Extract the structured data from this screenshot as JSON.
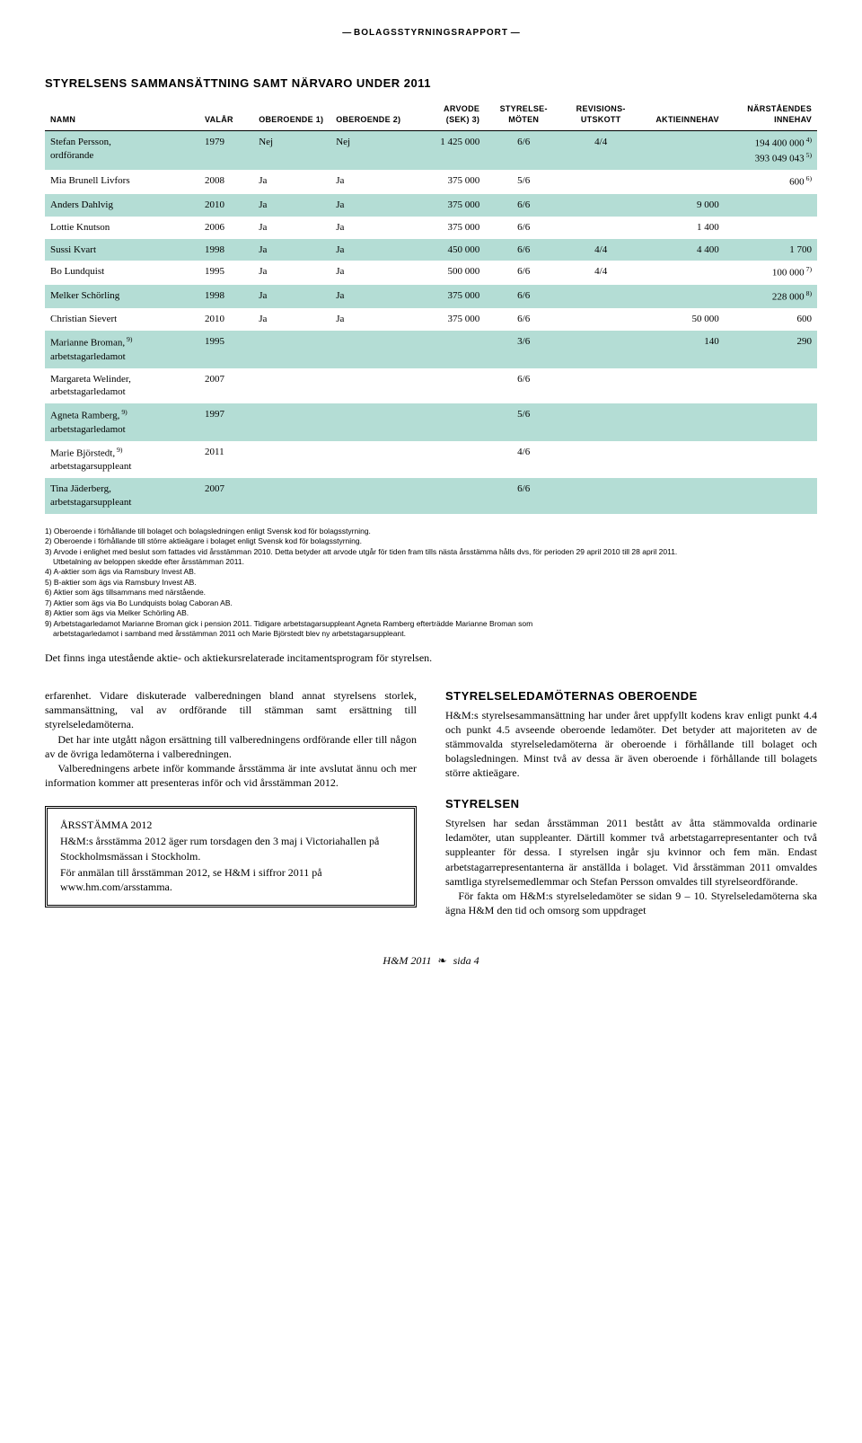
{
  "colors": {
    "rowAlt": "#b4ddd5",
    "text": "#000000",
    "bg": "#ffffff"
  },
  "eyebrow": "BOLAGSSTYRNINGSRAPPORT",
  "tableTitle": "STYRELSENS SAMMANSÄTTNING SAMT NÄRVARO UNDER 2011",
  "headers": {
    "name": "NAMN",
    "year": "VALÅR",
    "ind1": "OBEROENDE 1)",
    "ind2": "OBEROENDE 2)",
    "fee": "ARVODE (SEK) 3)",
    "meetings": "STYRELSE-MÖTEN",
    "audit": "REVISIONS-UTSKOTT",
    "shares": "AKTIEINNEHAV",
    "related": "NÄRSTÅENDES INNEHAV"
  },
  "rows": [
    {
      "name": "Stefan Persson,\nordförande",
      "year": "1979",
      "ind1": "Nej",
      "ind2": "Nej",
      "fee": "1 425 000",
      "meet": "6/6",
      "audit": "4/4",
      "shares": "",
      "related": "194 400 000 4)\n393 049 043 5)"
    },
    {
      "name": "Mia Brunell Livfors",
      "year": "2008",
      "ind1": "Ja",
      "ind2": "Ja",
      "fee": "375 000",
      "meet": "5/6",
      "audit": "",
      "shares": "",
      "related": "600 6)"
    },
    {
      "name": "Anders Dahlvig",
      "year": "2010",
      "ind1": "Ja",
      "ind2": "Ja",
      "fee": "375 000",
      "meet": "6/6",
      "audit": "",
      "shares": "9 000",
      "related": ""
    },
    {
      "name": "Lottie Knutson",
      "year": "2006",
      "ind1": "Ja",
      "ind2": "Ja",
      "fee": "375 000",
      "meet": "6/6",
      "audit": "",
      "shares": "1 400",
      "related": ""
    },
    {
      "name": "Sussi Kvart",
      "year": "1998",
      "ind1": "Ja",
      "ind2": "Ja",
      "fee": "450 000",
      "meet": "6/6",
      "audit": "4/4",
      "shares": "4 400",
      "related": "1 700"
    },
    {
      "name": "Bo Lundquist",
      "year": "1995",
      "ind1": "Ja",
      "ind2": "Ja",
      "fee": "500 000",
      "meet": "6/6",
      "audit": "4/4",
      "shares": "",
      "related": "100 000 7)"
    },
    {
      "name": "Melker Schörling",
      "year": "1998",
      "ind1": "Ja",
      "ind2": "Ja",
      "fee": "375 000",
      "meet": "6/6",
      "audit": "",
      "shares": "",
      "related": "228 000 8)"
    },
    {
      "name": "Christian Sievert",
      "year": "2010",
      "ind1": "Ja",
      "ind2": "Ja",
      "fee": "375 000",
      "meet": "6/6",
      "audit": "",
      "shares": "50 000",
      "related": "600"
    },
    {
      "name": "Marianne Broman, 9)\narbetstagarledamot",
      "year": "1995",
      "ind1": "",
      "ind2": "",
      "fee": "",
      "meet": "3/6",
      "audit": "",
      "shares": "140",
      "related": "290"
    },
    {
      "name": "Margareta Welinder,\narbetstagarledamot",
      "year": "2007",
      "ind1": "",
      "ind2": "",
      "fee": "",
      "meet": "6/6",
      "audit": "",
      "shares": "",
      "related": ""
    },
    {
      "name": "Agneta Ramberg, 9)\narbetstagarledamot",
      "year": "1997",
      "ind1": "",
      "ind2": "",
      "fee": "",
      "meet": "5/6",
      "audit": "",
      "shares": "",
      "related": ""
    },
    {
      "name": "Marie Björstedt, 9)\narbetstagarsuppleant",
      "year": "2011",
      "ind1": "",
      "ind2": "",
      "fee": "",
      "meet": "4/6",
      "audit": "",
      "shares": "",
      "related": ""
    },
    {
      "name": "Tina Jäderberg,\narbetstagarsuppleant",
      "year": "2007",
      "ind1": "",
      "ind2": "",
      "fee": "",
      "meet": "6/6",
      "audit": "",
      "shares": "",
      "related": ""
    }
  ],
  "footnotes": [
    "1) Oberoende i förhållande till bolaget och bolagsledningen enligt Svensk kod för bolagsstyrning.",
    "2) Oberoende i förhållande till större aktieägare i bolaget enligt Svensk kod för bolagsstyrning.",
    "3) Arvode i enlighet med beslut som fattades vid årsstämman 2010. Detta betyder att arvode utgår för tiden fram tills nästa årsstämma hålls dvs, för perioden 29 april 2010 till 28 april 2011.",
    "Utbetalning av beloppen skedde efter årsstämman 2011.",
    "4) A-aktier som ägs via Ramsbury Invest AB.",
    "5) B-aktier som ägs via Ramsbury Invest AB.",
    "6) Aktier som ägs tillsammans med närstående.",
    "7) Aktier som ägs via Bo Lundquists bolag Caboran AB.",
    "8) Aktier som ägs via Melker Schörling AB.",
    "9) Arbetstagarledamot Marianne Broman gick i pension 2011. Tidigare arbetstagarsuppleant Agneta Ramberg efterträdde Marianne Broman som",
    "arbetstagarledamot i samband med årsstämman 2011 och Marie Björstedt blev ny arbetstagarsuppleant."
  ],
  "footnoteIndent": {
    "3": true,
    "10": true
  },
  "introLine": "Det finns inga utestående aktie- och aktiekursrelaterade incitamentsprogram för styrelsen.",
  "left": {
    "p1": "erfarenhet. Vidare diskuterade valberedningen bland annat styrelsens storlek, sammansättning, val av ordförande till stämman samt ersättning till styrelseledamöterna.",
    "p2": "Det har inte utgått någon ersättning till valberedningens ordförande eller till någon av de övriga ledamöterna i valberedningen.",
    "p3": "Valberedningens arbete inför kommande årsstämma är inte avslutat ännu och mer information kommer att presenteras inför och vid årsstämman 2012.",
    "agmTitle": "ÅRSSTÄMMA 2012",
    "agm1": "H&M:s årsstämma 2012 äger rum torsdagen den 3 maj i Victoriahallen på Stockholmsmässan i Stockholm.",
    "agm2": "För anmälan till årsstämman 2012, se H&M i siffror 2011 på www.hm.com/arsstamma."
  },
  "right": {
    "h1": "STYRELSELEDAMÖTERNAS OBEROENDE",
    "p1": "H&M:s styrelsesammansättning har under året uppfyllt kodens krav enligt punkt 4.4 och punkt 4.5 avseende oberoende ledamöter. Det betyder att majoriteten av de stämmovalda styrelseledamöterna är oberoende i förhållande till bolaget och bolagsledningen. Minst två av dessa är även oberoende i förhållande till bolagets större aktieägare.",
    "h2": "STYRELSEN",
    "p2": "Styrelsen har sedan årsstämman 2011 bestått av åtta stämmovalda ordinarie ledamöter, utan suppleanter. Därtill kommer två arbetstagarrepresentanter och två suppleanter för dessa. I styrelsen ingår sju kvinnor och fem män. Endast arbetstagarrepresentanterna är anställda i bolaget. Vid årsstämman 2011 omvaldes samtliga styrelsemedlemmar och Stefan Persson omvaldes till styrelseordförande.",
    "p3": "För fakta om H&M:s styrelseledamöter se sidan 9 – 10. Styrelseledamöterna ska ägna H&M den tid och omsorg som uppdraget"
  },
  "pager": {
    "brand": "H&M 2011",
    "page": "sida 4",
    "ornament": "❧"
  }
}
